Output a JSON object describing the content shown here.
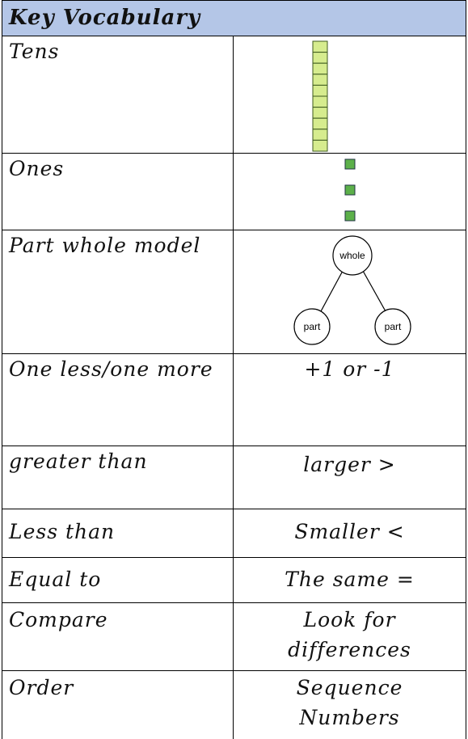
{
  "header": {
    "title": "Key Vocabulary"
  },
  "table": {
    "rows": [
      {
        "term": "Tens"
      },
      {
        "term": "Ones"
      },
      {
        "term": "Part whole model",
        "diagram": {
          "whole": "whole",
          "parts": [
            "part",
            "part"
          ]
        }
      },
      {
        "term": "One less/one more",
        "description": "+1 or -1"
      },
      {
        "term": "greater than",
        "description": "larger >"
      },
      {
        "term": "Less than",
        "description": "Smaller <"
      },
      {
        "term": "Equal to",
        "description": "The same ="
      },
      {
        "term": "Compare",
        "description": "Look for differences"
      },
      {
        "term": "Order",
        "description": "Sequence Numbers"
      }
    ]
  }
}
